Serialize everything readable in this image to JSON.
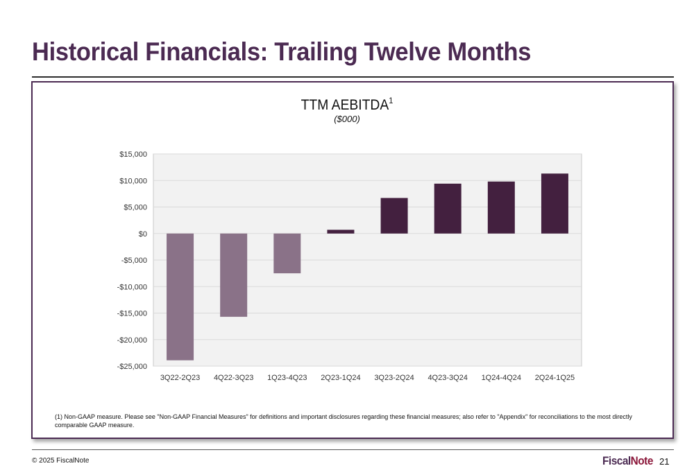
{
  "slide": {
    "title": "Historical Financials: Trailing Twelve Months",
    "copyright": "© 2025 FiscalNote",
    "page_number": "21",
    "logo": {
      "part1": "Fiscal",
      "part2": "Note"
    }
  },
  "footnote": "(1) Non-GAAP measure.  Please see \"Non-GAAP Financial Measures\" for definitions and important disclosures regarding these financial measures; also refer to \"Appendix\" for reconciliations to the most directly comparable GAAP measure.",
  "chart_data": {
    "type": "bar",
    "title": "TTM AEBITDA",
    "title_superscript": "1",
    "subtitle": "($000)",
    "categories": [
      "3Q22-2Q23",
      "4Q22-3Q23",
      "1Q23-4Q23",
      "2Q23-1Q24",
      "3Q23-2Q24",
      "4Q23-3Q24",
      "1Q24-4Q24",
      "2Q24-1Q25"
    ],
    "values": [
      -23900,
      -15700,
      -7500,
      700,
      6700,
      9400,
      9800,
      11300
    ],
    "ylim": [
      -25000,
      15000
    ],
    "yticks": [
      15000,
      10000,
      5000,
      0,
      -5000,
      -10000,
      -15000,
      -20000,
      -25000
    ],
    "ytick_labels": [
      "$15,000",
      "$10,000",
      "$5,000",
      "$0",
      "-$5,000",
      "-$10,000",
      "-$15,000",
      "-$20,000",
      "-$25,000"
    ],
    "grid": true,
    "colors": {
      "negative": "#8a7288",
      "positive": "#43203f",
      "plot_bg": "#f2f2f2",
      "grid": "#d9d9d9"
    }
  }
}
